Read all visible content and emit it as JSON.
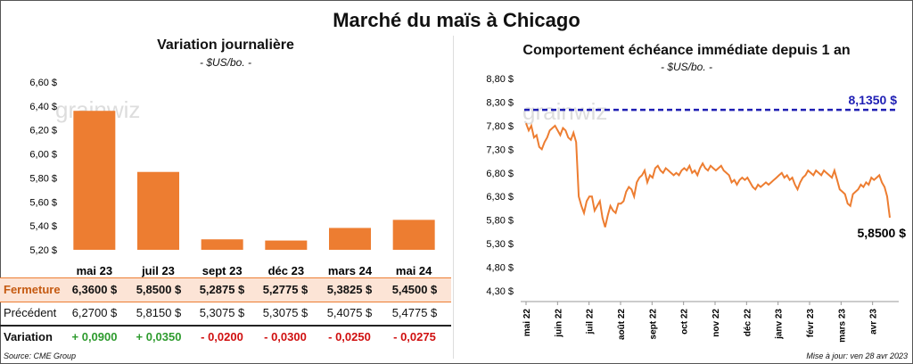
{
  "title": "Marché du maïs à Chicago",
  "left": {
    "title": "Variation  journalière",
    "unit": "- $US/bo. -",
    "watermark": "grainwiz",
    "rows": {
      "fermeture_label": "Fermeture",
      "precedent_label": "Précédent",
      "variation_label": "Variation",
      "fermeture": [
        "6,3600  $",
        "5,8500  $",
        "5,2875  $",
        "5,2775  $",
        "5,3825  $",
        "5,4500  $"
      ],
      "precedent": [
        "6,2700  $",
        "5,8150  $",
        "5,3075  $",
        "5,3075  $",
        "5,4075  $",
        "5,4775  $"
      ],
      "variation": [
        "+ 0,0900",
        "+ 0,0350",
        "- 0,0200",
        "- 0,0300",
        "- 0,0250",
        "- 0,0275"
      ]
    },
    "source": "Source: CME Group"
  },
  "right": {
    "title": "Comportement  échéance immédiate depuis 1 an",
    "unit": "- $US/bo. -",
    "watermark": "grainwiz",
    "update": "Mise à jour: ven 28 avr 2023"
  },
  "colors": {
    "bar": "#ED7D31",
    "line": "#ED7D31",
    "ref": "#1F1FB4",
    "positive": "#2E9B2E",
    "negative": "#D01010",
    "highlight": "#FCE4D6"
  },
  "chart_data": [
    {
      "type": "bar",
      "categories": [
        "mai 23",
        "juil 23",
        "sept 23",
        "déc 23",
        "mars 24",
        "mai 24"
      ],
      "values": [
        6.36,
        5.85,
        5.2875,
        5.2775,
        5.3825,
        5.45
      ],
      "ylim": [
        5.2,
        6.6
      ],
      "yticks": [
        "5,20 $",
        "5,40 $",
        "5,60 $",
        "5,80 $",
        "6,00 $",
        "6,20 $",
        "6,40 $",
        "6,60 $"
      ],
      "ytick_values": [
        5.2,
        5.4,
        5.6,
        5.8,
        6.0,
        6.2,
        6.4,
        6.6
      ]
    },
    {
      "type": "line",
      "ylim": [
        4.3,
        8.8
      ],
      "yticks": [
        "4,30 $",
        "4,80 $",
        "5,30 $",
        "5,80 $",
        "6,30 $",
        "6,80 $",
        "7,30 $",
        "7,80 $",
        "8,30 $",
        "8,80 $"
      ],
      "ytick_values": [
        4.3,
        4.8,
        5.3,
        5.8,
        6.3,
        6.8,
        7.3,
        7.8,
        8.3,
        8.8
      ],
      "xticks": [
        "mai 22",
        "juin 22",
        "juil 22",
        "août 22",
        "sept 22",
        "oct 22",
        "nov 22",
        "déc 22",
        "janv 23",
        "févr 23",
        "mars 23",
        "avr 23"
      ],
      "reference": {
        "value": 8.135,
        "label": "8,1350 $"
      },
      "last_label": "5,8500 $",
      "values": [
        7.85,
        7.7,
        7.8,
        7.55,
        7.6,
        7.35,
        7.3,
        7.45,
        7.55,
        7.7,
        7.75,
        7.8,
        7.7,
        7.6,
        7.75,
        7.7,
        7.55,
        7.5,
        7.65,
        7.45,
        6.3,
        6.1,
        5.95,
        6.2,
        6.3,
        6.3,
        6.0,
        6.1,
        6.2,
        5.85,
        5.65,
        5.9,
        6.1,
        6.0,
        5.95,
        6.15,
        6.15,
        6.2,
        6.4,
        6.5,
        6.45,
        6.3,
        6.6,
        6.7,
        6.75,
        6.85,
        6.6,
        6.75,
        6.7,
        6.9,
        6.95,
        6.85,
        6.8,
        6.9,
        6.85,
        6.8,
        6.75,
        6.8,
        6.75,
        6.85,
        6.9,
        6.85,
        6.95,
        6.8,
        6.85,
        6.75,
        6.9,
        7.0,
        6.9,
        6.85,
        6.95,
        6.9,
        6.85,
        6.9,
        6.95,
        6.85,
        6.8,
        6.75,
        6.6,
        6.65,
        6.55,
        6.65,
        6.7,
        6.65,
        6.7,
        6.6,
        6.5,
        6.45,
        6.55,
        6.5,
        6.55,
        6.6,
        6.55,
        6.6,
        6.65,
        6.7,
        6.75,
        6.8,
        6.7,
        6.75,
        6.65,
        6.7,
        6.55,
        6.45,
        6.6,
        6.7,
        6.75,
        6.85,
        6.8,
        6.75,
        6.85,
        6.8,
        6.75,
        6.85,
        6.8,
        6.75,
        6.7,
        6.85,
        6.65,
        6.45,
        6.4,
        6.35,
        6.15,
        6.1,
        6.35,
        6.4,
        6.45,
        6.55,
        6.5,
        6.6,
        6.55,
        6.7,
        6.65,
        6.7,
        6.75,
        6.6,
        6.5,
        6.3,
        5.85
      ]
    }
  ]
}
